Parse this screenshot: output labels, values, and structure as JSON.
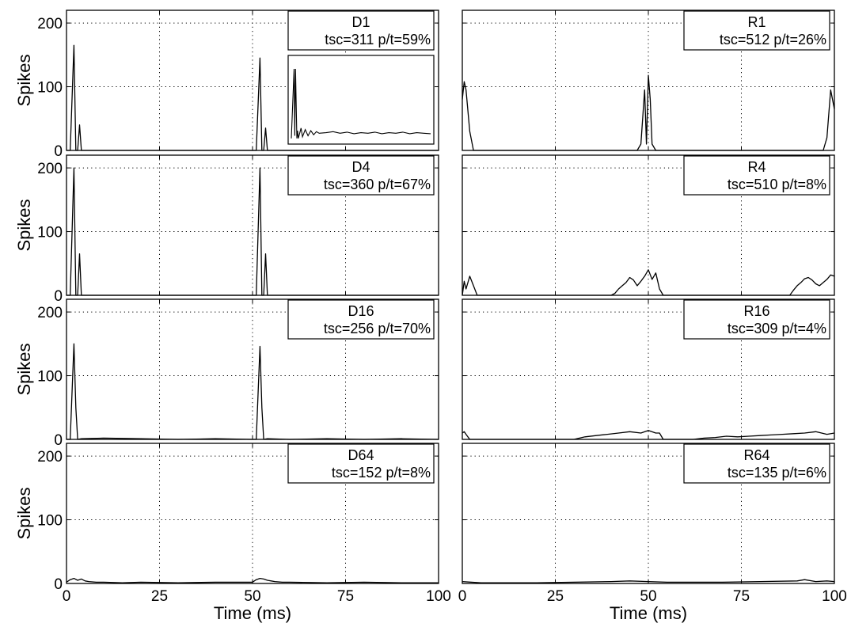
{
  "figure": {
    "ylabel": "Spikes",
    "xlabel": "Time (ms)",
    "xticks": [
      "0",
      "25",
      "50",
      "75",
      "100"
    ],
    "yticks": [
      "0",
      "100",
      "200"
    ]
  },
  "chart_data": [
    {
      "type": "line",
      "panel": "D1",
      "info": "tsc=311 p/t=59%",
      "xlabel": "",
      "ylabel": "Spikes",
      "xlim": [
        0,
        100
      ],
      "ylim": [
        0,
        220
      ],
      "grid": true,
      "series": [
        {
          "x": [
            0,
            1,
            2,
            2.5,
            3,
            3.5,
            4,
            4.5,
            50,
            51,
            52,
            52.5,
            53,
            53.5,
            54,
            54.5,
            55,
            100
          ],
          "y": [
            0,
            0,
            165,
            0,
            0,
            40,
            0,
            0,
            0,
            0,
            145,
            0,
            0,
            35,
            0,
            0,
            0,
            0
          ]
        }
      ],
      "inset": {
        "x": [
          0,
          2,
          2.5,
          3,
          4,
          4.5,
          5,
          7,
          8,
          10,
          12,
          14,
          16,
          18,
          20,
          25,
          30,
          35,
          40,
          45,
          50,
          55,
          60,
          65,
          70,
          75,
          80,
          85,
          90,
          95,
          100
        ],
        "y": [
          5,
          140,
          10,
          140,
          5,
          20,
          5,
          25,
          8,
          22,
          10,
          20,
          12,
          18,
          15,
          16,
          18,
          15,
          17,
          14,
          16,
          15,
          17,
          14,
          16,
          15,
          17,
          14,
          16,
          15,
          14
        ],
        "ylim": [
          0,
          160
        ]
      }
    },
    {
      "type": "line",
      "panel": "R1",
      "info": "tsc=512 p/t=26%",
      "xlabel": "",
      "ylabel": "",
      "xlim": [
        0,
        100
      ],
      "ylim": [
        0,
        220
      ],
      "grid": true,
      "series": [
        {
          "x": [
            0,
            0.5,
            1,
            2,
            3,
            47,
            48,
            49,
            49.5,
            50,
            50.5,
            51,
            52,
            53,
            96,
            97,
            98,
            99,
            100
          ],
          "y": [
            80,
            108,
            95,
            30,
            0,
            0,
            10,
            95,
            10,
            118,
            80,
            10,
            0,
            0,
            0,
            0,
            20,
            95,
            65
          ]
        }
      ]
    },
    {
      "type": "line",
      "panel": "D4",
      "info": "tsc=360 p/t=67%",
      "xlabel": "",
      "ylabel": "Spikes",
      "xlim": [
        0,
        100
      ],
      "ylim": [
        0,
        220
      ],
      "grid": true,
      "series": [
        {
          "x": [
            0,
            1,
            2,
            2.5,
            3,
            3.5,
            4,
            4.5,
            50,
            51,
            52,
            52.5,
            53,
            53.5,
            54,
            54.5,
            55,
            100
          ],
          "y": [
            0,
            0,
            200,
            0,
            0,
            65,
            0,
            0,
            0,
            0,
            200,
            0,
            0,
            65,
            0,
            0,
            0,
            0
          ]
        }
      ]
    },
    {
      "type": "line",
      "panel": "R4",
      "info": "tsc=510 p/t=8%",
      "xlabel": "",
      "ylabel": "",
      "xlim": [
        0,
        100
      ],
      "ylim": [
        0,
        220
      ],
      "grid": true,
      "series": [
        {
          "x": [
            0,
            0.5,
            1,
            2,
            3,
            4,
            5,
            6,
            40,
            41,
            42,
            43,
            44,
            45,
            46,
            47,
            48,
            49,
            50,
            51,
            52,
            53,
            54,
            88,
            89,
            90,
            91,
            92,
            93,
            94,
            95,
            96,
            97,
            98,
            99,
            100
          ],
          "y": [
            0,
            22,
            10,
            30,
            15,
            0,
            0,
            0,
            0,
            3,
            10,
            15,
            20,
            28,
            24,
            15,
            22,
            30,
            40,
            25,
            35,
            10,
            0,
            0,
            8,
            15,
            20,
            26,
            28,
            24,
            18,
            15,
            20,
            25,
            32,
            30
          ]
        }
      ]
    },
    {
      "type": "line",
      "panel": "D16",
      "info": "tsc=256 p/t=70%",
      "xlabel": "",
      "ylabel": "Spikes",
      "xlim": [
        0,
        100
      ],
      "ylim": [
        0,
        220
      ],
      "grid": true,
      "series": [
        {
          "x": [
            0,
            1,
            2,
            2.5,
            3,
            4,
            10,
            20,
            30,
            40,
            50,
            51,
            52,
            52.5,
            53,
            54,
            60,
            70,
            80,
            90,
            100
          ],
          "y": [
            0,
            0,
            150,
            50,
            0,
            1,
            2,
            1,
            0,
            1,
            0,
            0,
            146,
            50,
            0,
            1,
            0,
            1,
            0,
            1,
            0
          ]
        }
      ]
    },
    {
      "type": "line",
      "panel": "R16",
      "info": "tsc=309 p/t=4%",
      "xlabel": "",
      "ylabel": "",
      "xlim": [
        0,
        100
      ],
      "ylim": [
        0,
        220
      ],
      "grid": true,
      "series": [
        {
          "x": [
            0,
            0.5,
            1,
            2,
            30,
            33,
            36,
            39,
            42,
            45,
            48,
            50,
            52,
            53,
            54,
            55,
            56,
            62,
            65,
            68,
            71,
            74,
            77,
            80,
            83,
            86,
            89,
            92,
            95,
            98,
            100
          ],
          "y": [
            10,
            12,
            8,
            0,
            0,
            4,
            6,
            8,
            10,
            12,
            10,
            14,
            10,
            10,
            0,
            0,
            0,
            0,
            2,
            3,
            5,
            4,
            5,
            6,
            7,
            8,
            9,
            10,
            12,
            8,
            10
          ]
        }
      ]
    },
    {
      "type": "line",
      "panel": "D64",
      "info": "tsc=152 p/t=8%",
      "xlabel": "Time (ms)",
      "ylabel": "Spikes",
      "xlim": [
        0,
        100
      ],
      "ylim": [
        0,
        220
      ],
      "grid": true,
      "series": [
        {
          "x": [
            0,
            1,
            2,
            3,
            4,
            5,
            6,
            8,
            10,
            15,
            20,
            30,
            40,
            50,
            51,
            52,
            53,
            54,
            55,
            56,
            58,
            60,
            70,
            80,
            90,
            100
          ],
          "y": [
            2,
            6,
            8,
            5,
            7,
            4,
            3,
            2,
            2,
            1,
            2,
            1,
            2,
            2,
            6,
            8,
            7,
            5,
            4,
            3,
            2,
            2,
            1,
            2,
            1,
            1
          ]
        }
      ]
    },
    {
      "type": "line",
      "panel": "R64",
      "info": "tsc=135 p/t=6%",
      "xlabel": "Time (ms)",
      "ylabel": "",
      "xlim": [
        0,
        100
      ],
      "ylim": [
        0,
        220
      ],
      "grid": true,
      "series": [
        {
          "x": [
            0,
            5,
            10,
            20,
            30,
            40,
            45,
            50,
            55,
            60,
            70,
            80,
            90,
            92,
            95,
            98,
            100
          ],
          "y": [
            3,
            1,
            1,
            1,
            2,
            3,
            4,
            3,
            2,
            2,
            2,
            3,
            4,
            6,
            3,
            4,
            3
          ]
        }
      ]
    }
  ]
}
